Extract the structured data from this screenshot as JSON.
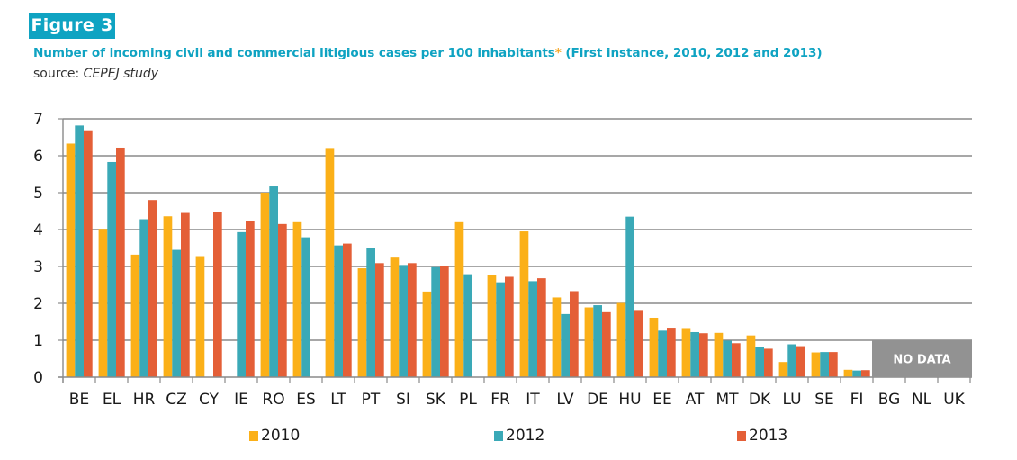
{
  "figure": {
    "badge": "Figure 3",
    "title": "Number of incoming civil and commercial litigious cases per 100 inhabitants",
    "title_asterisk": "*",
    "title_suffix": " (First instance, 2010, 2012 and 2013)",
    "source_label": "source: ",
    "source_name": "CEPEJ study",
    "no_data_label": "NO DATA"
  },
  "colors": {
    "accent": "#0fa3c2",
    "asterisk": "#f5a623",
    "series_2010": "#fbb018",
    "series_2012": "#3aa9b7",
    "series_2013": "#e45f37",
    "gridline": "#8a8a8a",
    "no_data_box": "#929292"
  },
  "chart_data": {
    "type": "bar",
    "title": "Number of incoming civil and commercial litigious cases per 100 inhabitants* (First instance, 2010, 2012 and 2013)",
    "xlabel": "",
    "ylabel": "",
    "ylim": [
      0,
      7
    ],
    "yticks": [
      "0",
      "1",
      "2",
      "3",
      "4",
      "5",
      "6",
      "7"
    ],
    "grid": true,
    "legend_position": "bottom",
    "categories": [
      "BE",
      "EL",
      "HR",
      "CZ",
      "CY",
      "IE",
      "RO",
      "ES",
      "LT",
      "PT",
      "SI",
      "SK",
      "PL",
      "FR",
      "IT",
      "LV",
      "DE",
      "HU",
      "EE",
      "AT",
      "MT",
      "DK",
      "LU",
      "SE",
      "FI",
      "BG",
      "NL",
      "UK"
    ],
    "no_data_categories": [
      "BG",
      "NL",
      "UK"
    ],
    "series": [
      {
        "name": "2010",
        "values": [
          6.33,
          4.02,
          3.32,
          4.36,
          3.28,
          null,
          5.0,
          4.2,
          6.21,
          2.95,
          3.24,
          2.32,
          4.2,
          2.76,
          3.95,
          2.16,
          1.89,
          2.01,
          1.61,
          1.33,
          1.2,
          1.13,
          0.41,
          0.67,
          0.2,
          null,
          null,
          null
        ]
      },
      {
        "name": "2012",
        "values": [
          6.82,
          5.83,
          4.28,
          3.45,
          null,
          3.93,
          5.17,
          3.79,
          3.57,
          3.51,
          3.04,
          2.98,
          2.79,
          2.57,
          2.6,
          1.71,
          1.95,
          4.35,
          1.26,
          1.22,
          0.99,
          0.82,
          0.89,
          0.68,
          0.18,
          null,
          null,
          null
        ]
      },
      {
        "name": "2013",
        "values": [
          6.69,
          6.22,
          4.8,
          4.45,
          4.48,
          4.23,
          4.15,
          null,
          3.62,
          3.09,
          3.09,
          3.01,
          null,
          2.72,
          2.68,
          2.33,
          1.76,
          1.82,
          1.34,
          1.19,
          0.92,
          0.77,
          0.84,
          0.68,
          0.19,
          null,
          null,
          null
        ]
      }
    ]
  }
}
